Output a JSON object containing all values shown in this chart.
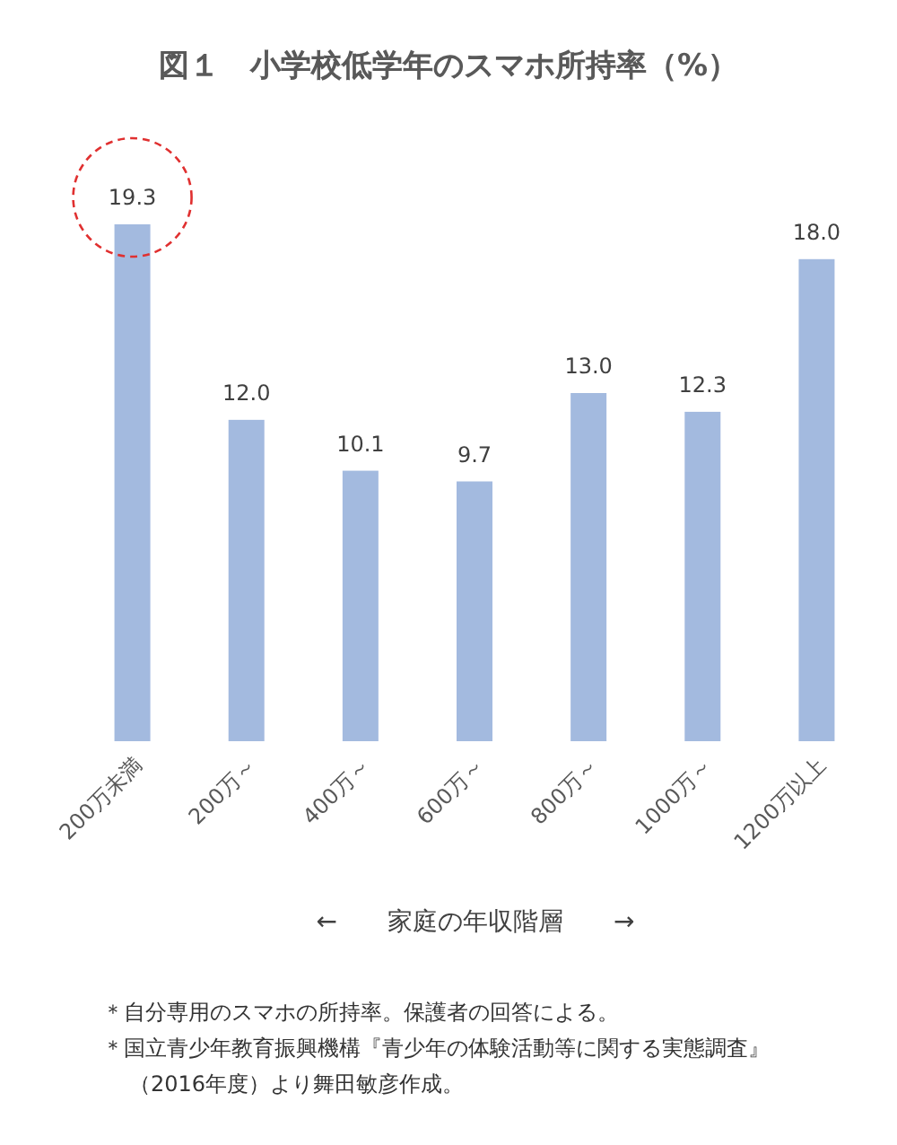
{
  "chart_data": {
    "type": "bar",
    "title": "図１　小学校低学年のスマホ所持率（%）",
    "categories": [
      "200万未満",
      "200万～",
      "400万～",
      "600万～",
      "800万～",
      "1000万～",
      "1200万以上"
    ],
    "values": [
      19.3,
      12.0,
      10.1,
      9.7,
      13.0,
      12.3,
      18.0
    ],
    "color": "#a3badf",
    "value_labels": [
      "19.3",
      "12.0",
      "10.1",
      "9.7",
      "13.0",
      "12.3",
      "18.0"
    ],
    "xlabel": "←　　家庭の年収階層　　→",
    "annotations": [
      "＊自分専用のスマホの所持率。保護者の回答による。",
      "＊国立青少年教育振興機構『青少年の体験活動等に関する実態調査』",
      "（2016年度）より舞田敏彦作成。"
    ]
  }
}
